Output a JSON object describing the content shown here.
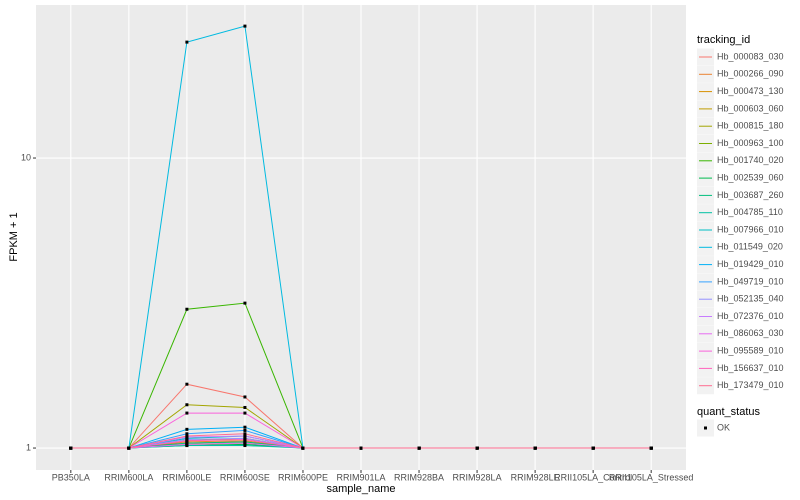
{
  "chart_data": {
    "type": "line",
    "log_y": true,
    "grid": true,
    "y_label": "FPKM + 1",
    "x_label": "sample_name",
    "legend_title": "tracking_id",
    "point_legend_title": "quant_status",
    "point_legend_label": "OK",
    "point_color": "#000000",
    "legend_position": "right",
    "categories": [
      "PB350LA",
      "RRIM600LA",
      "RRIM600LE",
      "RRIM600SE",
      "RRIM600PE",
      "RRIM901LA",
      "RRIM928BA",
      "RRIM928LA",
      "RRIM928LE",
      "RRII105LA_Control",
      "RRII105LA_Stressed"
    ],
    "ylim": [
      0.84,
      33.7
    ],
    "yticks": [
      1,
      10
    ],
    "series": [
      {
        "name": "Hb_000083_030",
        "color": "#F8766D",
        "values": [
          1,
          1,
          1.66,
          1.5,
          1,
          1,
          1,
          1,
          1,
          1,
          1
        ]
      },
      {
        "name": "Hb_000266_090",
        "color": "#EA8331",
        "values": [
          1,
          1,
          1.05,
          1.06,
          1,
          1,
          1,
          1,
          1,
          1,
          1
        ]
      },
      {
        "name": "Hb_000473_130",
        "color": "#D89000",
        "values": [
          1,
          1,
          1.04,
          1.05,
          1,
          1,
          1,
          1,
          1,
          1,
          1
        ]
      },
      {
        "name": "Hb_000603_060",
        "color": "#C09B00",
        "values": [
          1,
          1,
          1.06,
          1.08,
          1,
          1,
          1,
          1,
          1,
          1,
          1
        ]
      },
      {
        "name": "Hb_000815_180",
        "color": "#A3A500",
        "values": [
          1,
          1,
          1.41,
          1.38,
          1,
          1,
          1,
          1,
          1,
          1,
          1
        ]
      },
      {
        "name": "Hb_000963_100",
        "color": "#7CAE00",
        "values": [
          1,
          1,
          1.03,
          1.04,
          1,
          1,
          1,
          1,
          1,
          1,
          1
        ]
      },
      {
        "name": "Hb_001740_020",
        "color": "#39B600",
        "values": [
          1,
          1,
          3.01,
          3.16,
          1,
          1,
          1,
          1,
          1,
          1,
          1
        ]
      },
      {
        "name": "Hb_002539_060",
        "color": "#00BB4E",
        "values": [
          1,
          1,
          1.02,
          1.03,
          1,
          1,
          1,
          1,
          1,
          1,
          1
        ]
      },
      {
        "name": "Hb_003687_260",
        "color": "#00BF7D",
        "values": [
          1,
          1,
          1.04,
          1.05,
          1,
          1,
          1,
          1,
          1,
          1,
          1
        ]
      },
      {
        "name": "Hb_004785_110",
        "color": "#00C1A3",
        "values": [
          1,
          1,
          1.02,
          1.02,
          1,
          1,
          1,
          1,
          1,
          1,
          1
        ]
      },
      {
        "name": "Hb_007966_010",
        "color": "#00BFC4",
        "values": [
          1,
          1,
          1.08,
          1.1,
          1,
          1,
          1,
          1,
          1,
          1,
          1
        ]
      },
      {
        "name": "Hb_011549_020",
        "color": "#00BAE0",
        "values": [
          1,
          1,
          25.1,
          28.5,
          1,
          1,
          1,
          1,
          1,
          1,
          1
        ]
      },
      {
        "name": "Hb_019429_010",
        "color": "#00B0F6",
        "values": [
          1,
          1,
          1.16,
          1.18,
          1,
          1,
          1,
          1,
          1,
          1,
          1
        ]
      },
      {
        "name": "Hb_049719_010",
        "color": "#35A2FF",
        "values": [
          1,
          1,
          1.12,
          1.15,
          1,
          1,
          1,
          1,
          1,
          1,
          1
        ]
      },
      {
        "name": "Hb_052135_040",
        "color": "#9590FF",
        "values": [
          1,
          1,
          1.07,
          1.08,
          1,
          1,
          1,
          1,
          1,
          1,
          1
        ]
      },
      {
        "name": "Hb_072376_010",
        "color": "#C77CFF",
        "values": [
          1,
          1,
          1.09,
          1.1,
          1,
          1,
          1,
          1,
          1,
          1,
          1
        ]
      },
      {
        "name": "Hb_086063_030",
        "color": "#E76BF3",
        "values": [
          1,
          1,
          1.03,
          1.04,
          1,
          1,
          1,
          1,
          1,
          1,
          1
        ]
      },
      {
        "name": "Hb_095589_010",
        "color": "#FA62DB",
        "values": [
          1,
          1,
          1.32,
          1.32,
          1,
          1,
          1,
          1,
          1,
          1,
          1
        ]
      },
      {
        "name": "Hb_156637_010",
        "color": "#FF62BC",
        "values": [
          1,
          1,
          1.06,
          1.07,
          1,
          1,
          1,
          1,
          1,
          1,
          1
        ]
      },
      {
        "name": "Hb_173479_010",
        "color": "#FF6C91",
        "values": [
          1,
          1,
          1.1,
          1.12,
          1,
          1,
          1,
          1,
          1,
          1,
          1
        ]
      }
    ]
  }
}
